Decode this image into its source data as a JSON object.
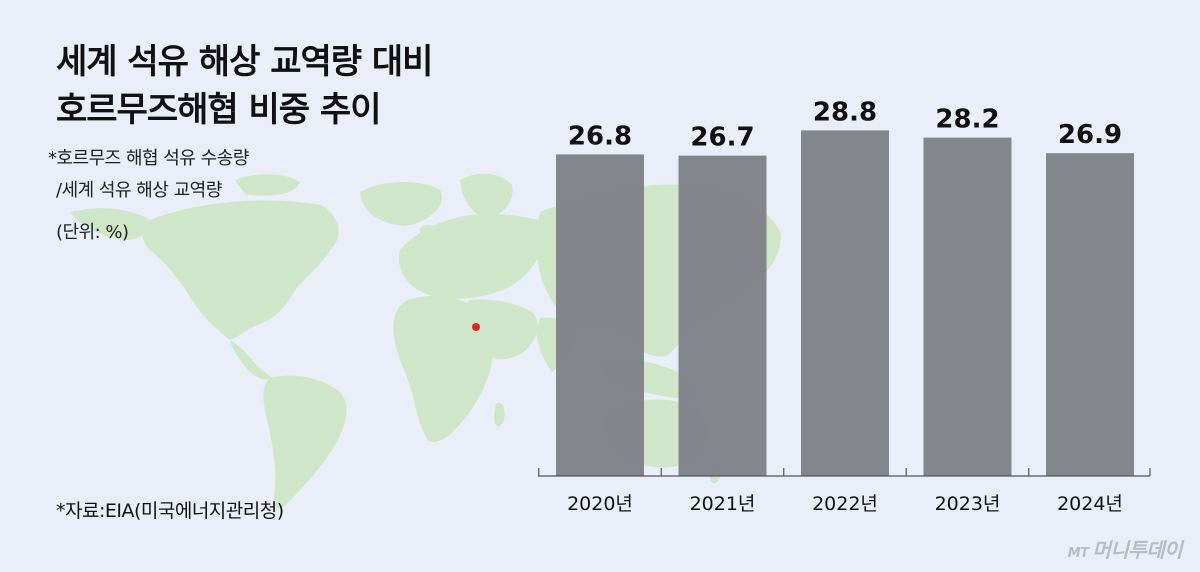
{
  "title_line1": "세계 석유 해상 교역량 대비",
  "title_line2": "호르무즈해협 비중 추이",
  "note_line1": "*호르무즈 해협 석유 수송량",
  "note_line2": "/세계 석유 해상 교역량",
  "unit": "(단위: %)",
  "source": "*자료:EIA(미국에너지관리청)",
  "brand": {
    "mt": "MT",
    "name": "머니투데이"
  },
  "colors": {
    "background": "#e9eef8",
    "bar": "#7e8088",
    "map": "#cfe6c8",
    "marker": "#e0262b"
  },
  "chart_data": {
    "type": "bar",
    "title": "세계 석유 해상 교역량 대비 호르무즈해협 비중 추이",
    "categories": [
      "2020년",
      "2021년",
      "2022년",
      "2023년",
      "2024년"
    ],
    "values": [
      26.8,
      26.7,
      28.8,
      28.2,
      26.9
    ],
    "unit": "%",
    "ylim": [
      0,
      31.5
    ],
    "grid": false,
    "legend": "none"
  }
}
